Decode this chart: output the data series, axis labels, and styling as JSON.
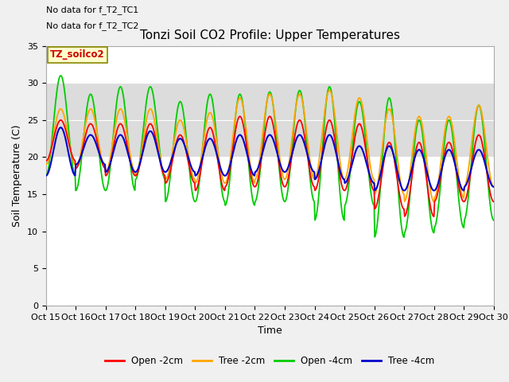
{
  "title": "Tonzi Soil CO2 Profile: Upper Temperatures",
  "xlabel": "Time",
  "ylabel": "Soil Temperature (C)",
  "ylim": [
    0,
    35
  ],
  "yticks": [
    0,
    5,
    10,
    15,
    20,
    25,
    30,
    35
  ],
  "n_days": 15,
  "xtick_labels": [
    "Oct 15",
    "Oct 16",
    "Oct 17",
    "Oct 18",
    "Oct 19",
    "Oct 20",
    "Oct 21",
    "Oct 22",
    "Oct 23",
    "Oct 24",
    "Oct 25",
    "Oct 26",
    "Oct 27",
    "Oct 28",
    "Oct 29",
    "Oct 30"
  ],
  "no_data_text1": "No data for f_T2_TC1",
  "no_data_text2": "No data for f_T2_TC2",
  "legend_title": "TZ_soilco2",
  "series": {
    "open_2cm": {
      "color": "#FF0000",
      "label": "Open -2cm"
    },
    "tree_2cm": {
      "color": "#FFA500",
      "label": "Tree -2cm"
    },
    "open_4cm": {
      "color": "#00CC00",
      "label": "Open -4cm"
    },
    "tree_4cm": {
      "color": "#0000CC",
      "label": "Tree -4cm"
    }
  },
  "fig_facecolor": "#F0F0F0",
  "plot_facecolor": "#FFFFFF",
  "shaded_band_color": "#DCDCDC",
  "shaded_band": [
    20,
    30
  ],
  "title_fontsize": 11,
  "open_4cm_highs": [
    31.0,
    28.5,
    29.5,
    29.5,
    27.5,
    28.5,
    28.5,
    28.8,
    29.0,
    29.5,
    27.5,
    28.0,
    25.0,
    25.0,
    27.0
  ],
  "open_4cm_lows": [
    17.5,
    15.5,
    15.5,
    17.0,
    14.0,
    14.0,
    13.5,
    14.0,
    14.0,
    11.5,
    13.5,
    9.2,
    9.8,
    10.5,
    11.5
  ],
  "tree_2cm_highs": [
    26.5,
    26.5,
    26.5,
    26.5,
    25.0,
    26.0,
    28.0,
    28.5,
    28.5,
    29.0,
    28.0,
    26.5,
    25.5,
    25.5,
    27.0
  ],
  "tree_2cm_lows": [
    19.0,
    18.5,
    18.0,
    17.5,
    17.0,
    16.5,
    16.5,
    17.0,
    17.0,
    17.0,
    17.0,
    15.0,
    14.0,
    14.5,
    16.0
  ],
  "open_2cm_highs": [
    25.0,
    24.5,
    24.5,
    24.5,
    23.0,
    24.0,
    25.5,
    25.5,
    25.0,
    25.0,
    24.5,
    22.0,
    22.0,
    22.0,
    23.0
  ],
  "open_2cm_lows": [
    19.5,
    18.5,
    17.5,
    17.5,
    16.5,
    15.5,
    16.0,
    16.0,
    16.0,
    15.5,
    15.5,
    13.0,
    12.0,
    14.0,
    14.0
  ],
  "tree_4cm_highs": [
    24.0,
    23.0,
    23.0,
    23.5,
    22.5,
    22.5,
    23.0,
    23.0,
    23.0,
    23.0,
    21.5,
    21.5,
    21.0,
    21.0,
    21.0
  ],
  "tree_4cm_lows": [
    17.5,
    19.0,
    18.0,
    18.0,
    18.0,
    17.5,
    17.5,
    18.0,
    18.0,
    17.0,
    16.5,
    15.5,
    15.5,
    15.5,
    16.0
  ]
}
